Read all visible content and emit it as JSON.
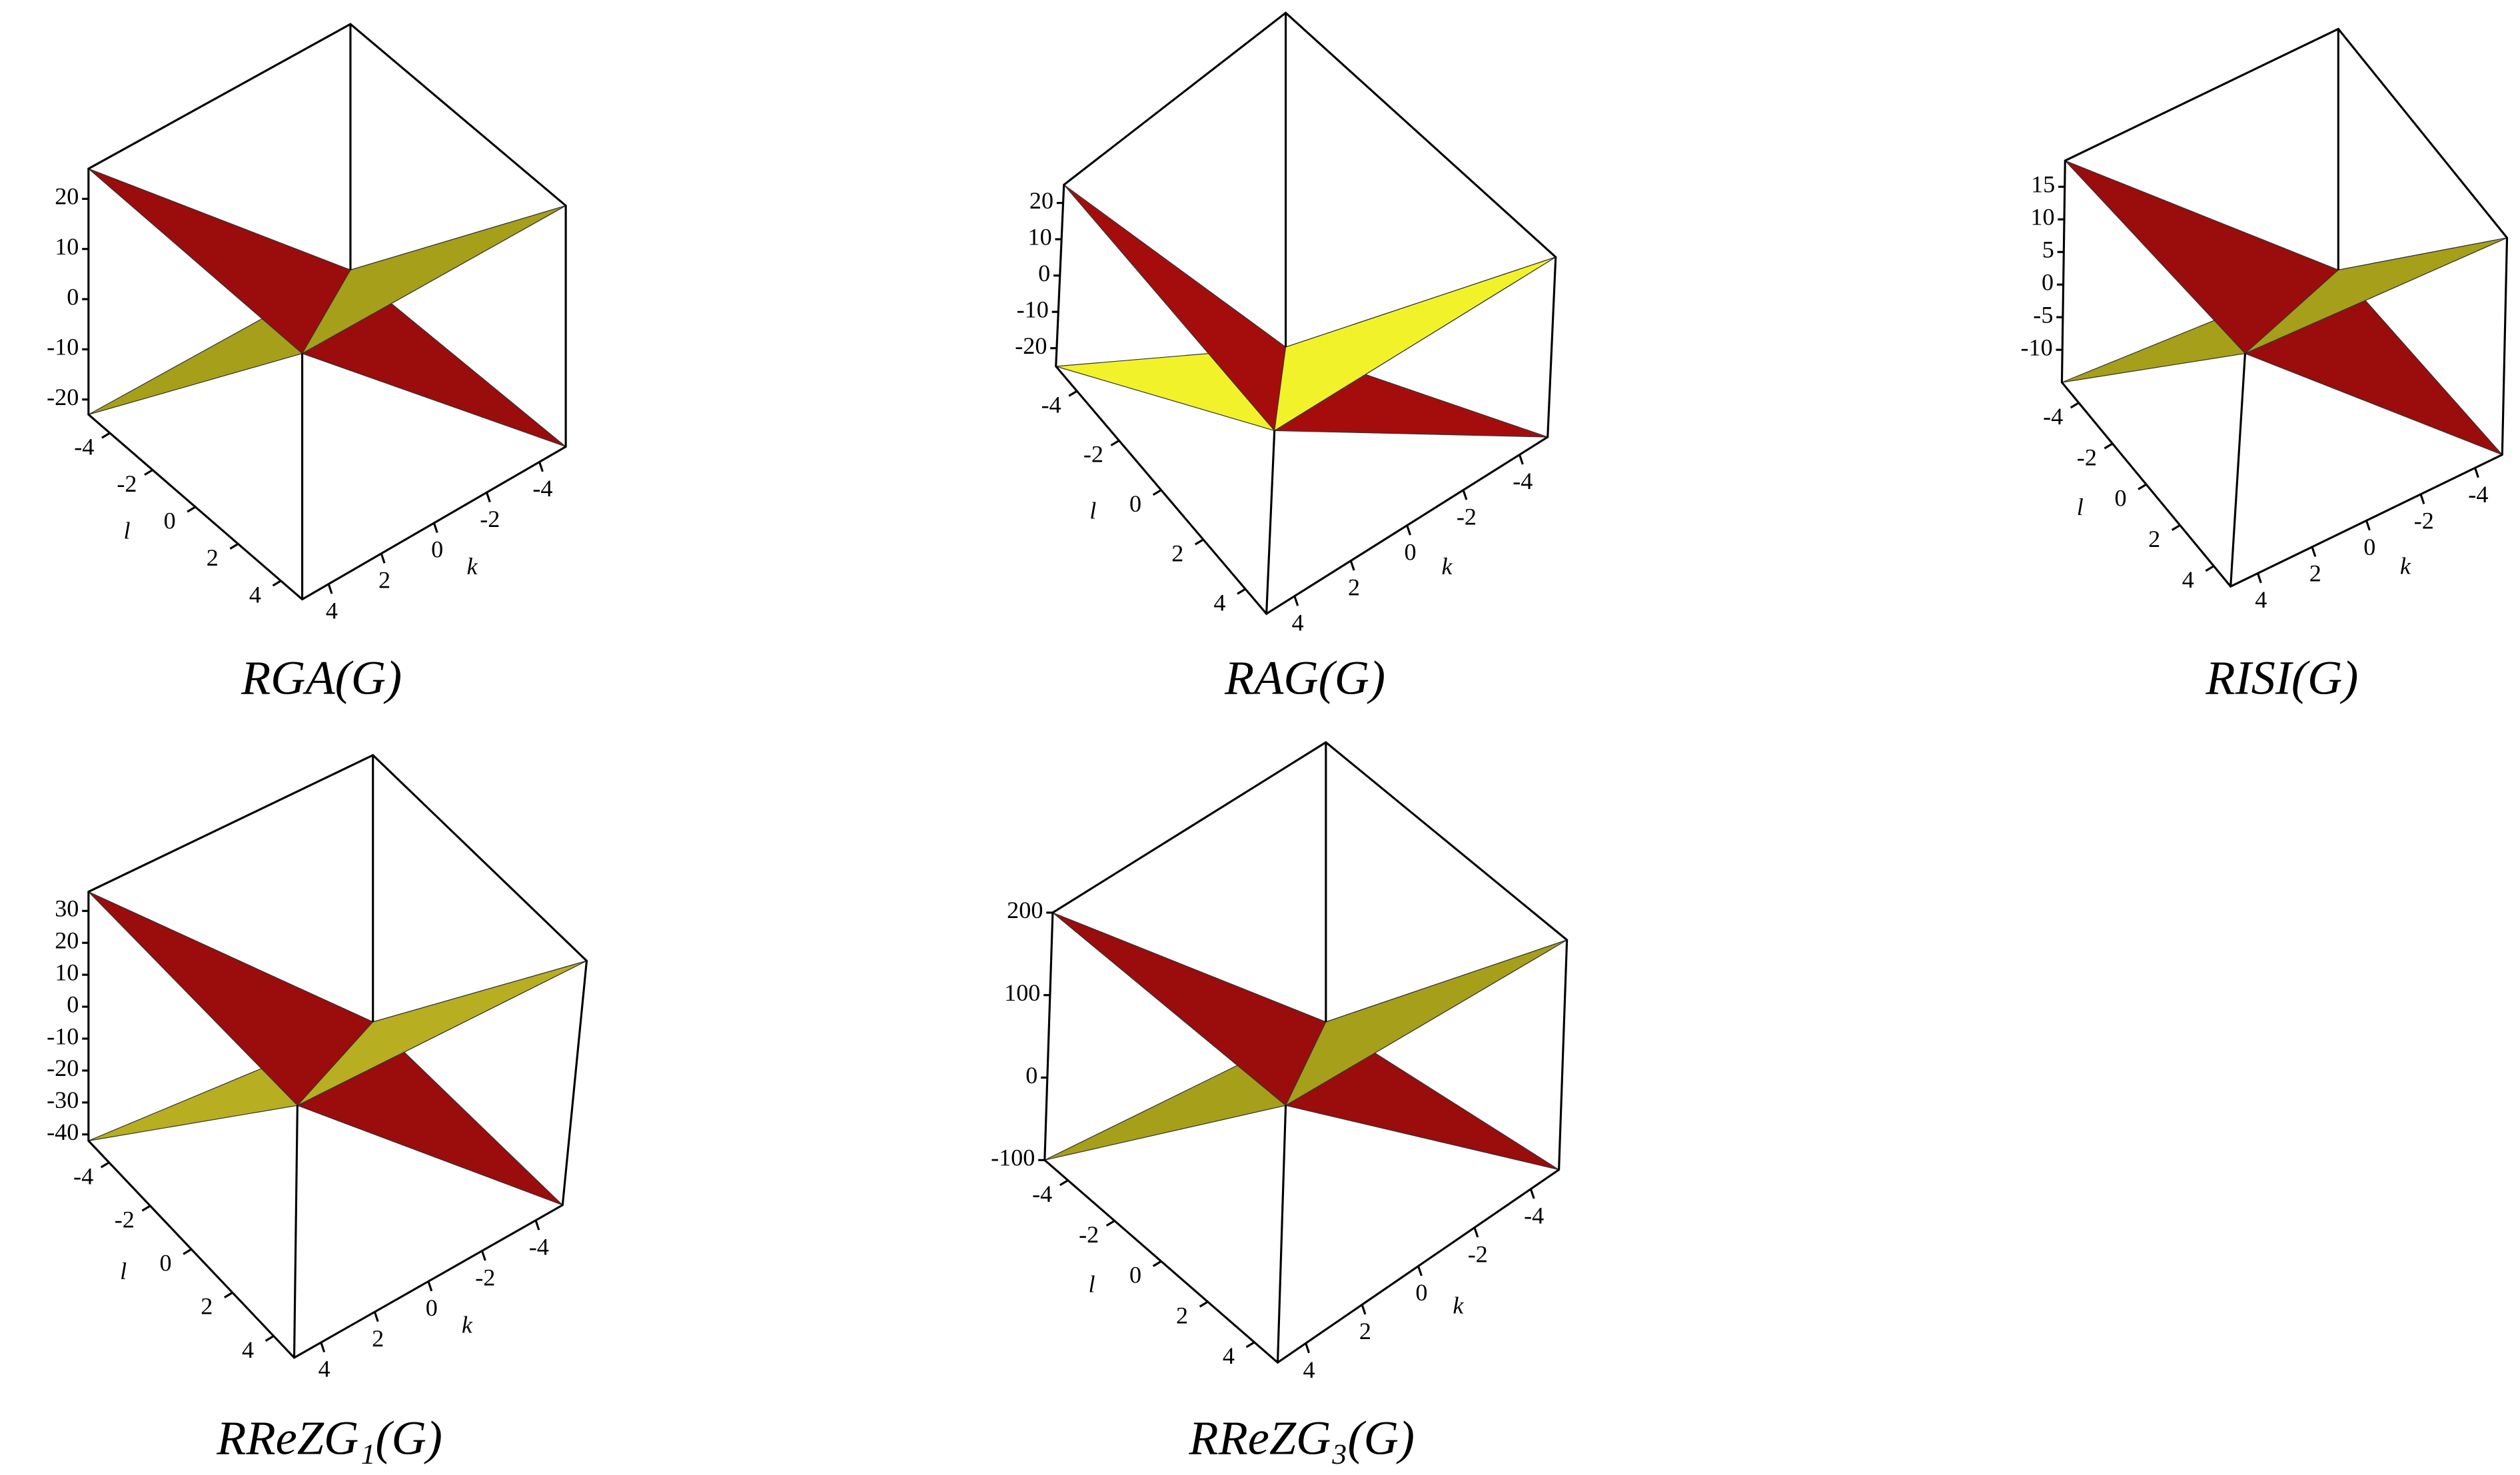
{
  "chart_data": [
    {
      "type": "surface3d",
      "title": "RGA(G)",
      "xlabel": "k",
      "ylabel": "l",
      "xlim": [
        -5,
        5
      ],
      "xticks": [
        -4,
        -2,
        0,
        2,
        4
      ],
      "ylim": [
        -5,
        5
      ],
      "yticks": [
        -4,
        -2,
        0,
        2,
        4
      ],
      "zlim": [
        -23,
        26
      ],
      "zticks": [
        20,
        10,
        0,
        -10,
        -20
      ],
      "colors": [
        "#9b0c0c",
        "#a69f1a"
      ]
    },
    {
      "type": "surface3d",
      "title": "RAG(G)",
      "xlabel": "k",
      "ylabel": "l",
      "xlim": [
        -5,
        5
      ],
      "xticks": [
        -4,
        -2,
        0,
        2,
        4
      ],
      "ylim": [
        -5,
        5
      ],
      "yticks": [
        -4,
        -2,
        0,
        2,
        4
      ],
      "zlim": [
        -25,
        25
      ],
      "zticks": [
        20,
        10,
        0,
        -10,
        -20
      ],
      "colors": [
        "#a50d0d",
        "#f2f22a"
      ]
    },
    {
      "type": "surface3d",
      "title": "RISI(G)",
      "xlabel": "k",
      "ylabel": "l",
      "xlim": [
        -5,
        5
      ],
      "xticks": [
        -4,
        -2,
        0,
        2,
        4
      ],
      "ylim": [
        -5,
        5
      ],
      "yticks": [
        -4,
        -2,
        0,
        2,
        4
      ],
      "zlim": [
        -15,
        19
      ],
      "zticks": [
        15,
        10,
        5,
        0,
        -5,
        -10
      ],
      "colors": [
        "#9b0c0c",
        "#a69f1a"
      ]
    },
    {
      "type": "surface3d",
      "title": "RReZG₁(G)",
      "xlabel": "k",
      "ylabel": "l",
      "xlim": [
        -5,
        5
      ],
      "xticks": [
        -4,
        -2,
        0,
        2,
        4
      ],
      "ylim": [
        -5,
        5
      ],
      "yticks": [
        -4,
        -2,
        0,
        2,
        4
      ],
      "zlim": [
        -42,
        36
      ],
      "zticks": [
        30,
        20,
        10,
        0,
        -10,
        -20,
        -30,
        -40
      ],
      "colors": [
        "#9b0c0c",
        "#b8ae22"
      ]
    },
    {
      "type": "surface3d",
      "title": "RReZG₃(G)",
      "xlabel": "k",
      "ylabel": "l",
      "xlim": [
        -5,
        5
      ],
      "xticks": [
        -4,
        -2,
        0,
        2,
        4
      ],
      "ylim": [
        -5,
        5
      ],
      "yticks": [
        -4,
        -2,
        0,
        2,
        4
      ],
      "zlim": [
        -100,
        200
      ],
      "zticks": [
        200,
        100,
        0,
        -100
      ],
      "colors": [
        "#9b0c0c",
        "#a69f1a"
      ]
    }
  ]
}
